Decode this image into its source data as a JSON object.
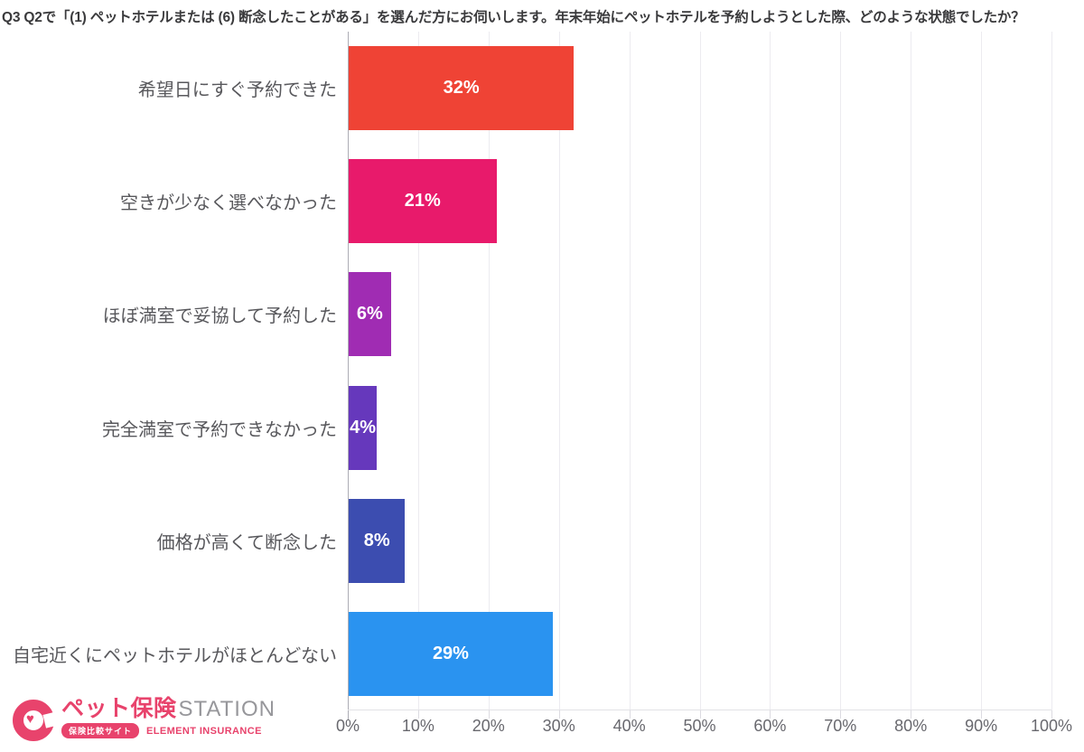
{
  "title": "Q3 Q2で「(1) ペットホテルまたは (6) 断念したことがある」を選んだ方にお伺いします。年末年始にペットホテルを予約しようとした際、どのような状態でしたか？",
  "chart_data": {
    "type": "bar",
    "orientation": "horizontal",
    "title": "Q3 Q2で「(1) ペットホテルまたは (6) 断念したことがある」を選んだ方にお伺いします。年末年始にペットホテルを予約しようとした際、どのような状態でしたか？",
    "categories": [
      "希望日にすぐ予約できた",
      "空きが少なく選べなかった",
      "ほぼ満室で妥協して予約した",
      "完全満室で予約できなかった",
      "価格が高くて断念した",
      "自宅近くにペットホテルがほとんどない"
    ],
    "values": [
      32,
      21,
      6,
      4,
      8,
      29
    ],
    "value_labels": [
      "32%",
      "21%",
      "6%",
      "4%",
      "8%",
      "29%"
    ],
    "bar_colors": [
      "#EF4335",
      "#E81A6B",
      "#A02CB3",
      "#6638BC",
      "#3C4DB0",
      "#2A93F0"
    ],
    "xlim": [
      0,
      100
    ],
    "x_tick_step": 10,
    "x_tick_labels": [
      "0%",
      "10%",
      "20%",
      "30%",
      "40%",
      "50%",
      "60%",
      "70%",
      "80%",
      "90%",
      "100%"
    ],
    "grid": true,
    "legend": "none"
  },
  "footer": {
    "brand_jp": "ペット保険",
    "brand_en": "STATION",
    "badge": "保険比較サイト",
    "subtext": "ELEMENT INSURANCE",
    "brand_color": "#E8436C"
  }
}
